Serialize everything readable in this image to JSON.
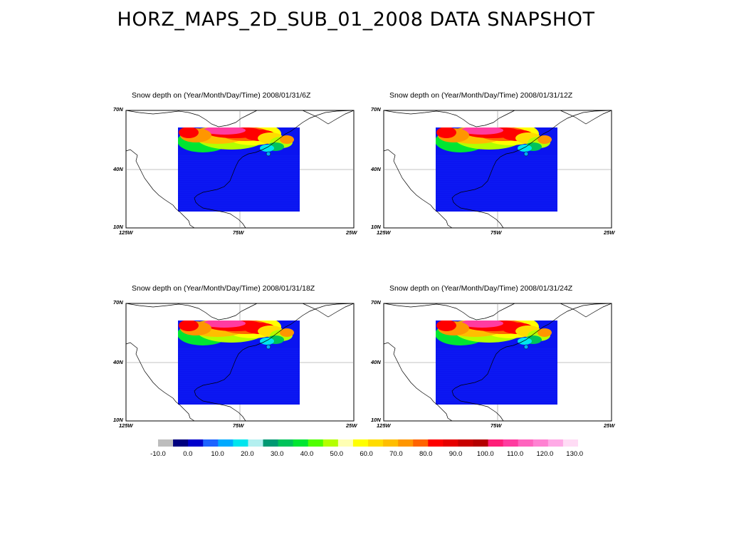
{
  "page": {
    "title": "HORZ_MAPS_2D_SUB_01_2008 DATA SNAPSHOT"
  },
  "panels": [
    {
      "title": "Snow depth  on (Year/Month/Day/Time) 2008/01/31/6Z"
    },
    {
      "title": "Snow depth  on (Year/Month/Day/Time) 2008/01/31/12Z"
    },
    {
      "title": "Snow depth  on (Year/Month/Day/Time) 2008/01/31/18Z"
    },
    {
      "title": "Snow depth  on (Year/Month/Day/Time) 2008/01/31/24Z"
    }
  ],
  "axes": {
    "lat_labels": [
      "70N",
      "40N",
      "10N"
    ],
    "lon_labels": [
      "125W",
      "75W",
      "25W"
    ]
  },
  "colorbar": {
    "labels": [
      "-10.0",
      "0.0",
      "10.0",
      "20.0",
      "30.0",
      "40.0",
      "50.0",
      "60.0",
      "70.0",
      "80.0",
      "90.0",
      "100.0",
      "110.0",
      "120.0",
      "130.0"
    ],
    "colors": [
      "#bdbdbd",
      "#00007f",
      "#0000cc",
      "#1e64ff",
      "#00aaff",
      "#00e5ee",
      "#b4f0f0",
      "#009973",
      "#00c35a",
      "#00e632",
      "#50ff00",
      "#b4ff00",
      "#ffffb4",
      "#ffff00",
      "#ffdc00",
      "#ffbe00",
      "#ff9600",
      "#ff6400",
      "#ff0000",
      "#e60000",
      "#c80000",
      "#b40000",
      "#ff1e78",
      "#ff3ca0",
      "#ff64be",
      "#ff82d2",
      "#ffaae6",
      "#ffdcf5"
    ]
  },
  "map_colors": {
    "ocean": "#0a14f0",
    "grid_line": "#888888",
    "coast": "#000000"
  }
}
